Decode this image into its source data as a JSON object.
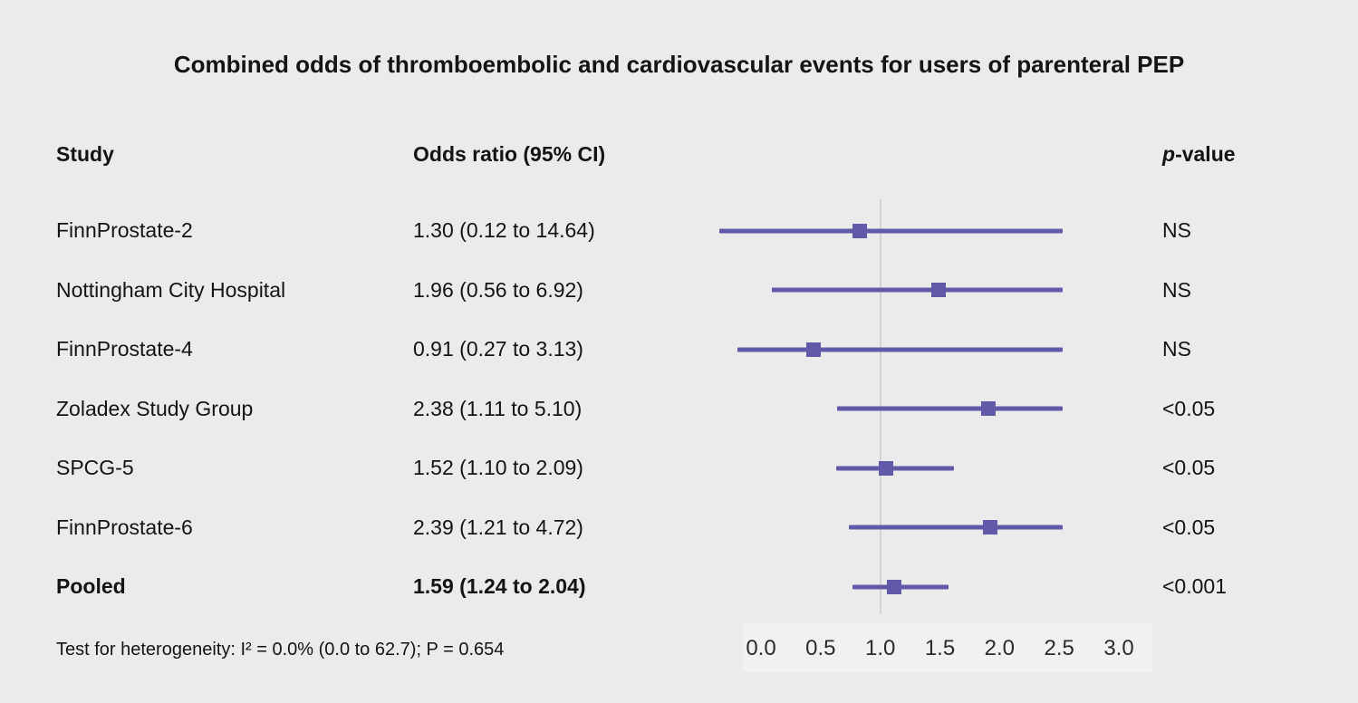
{
  "title": "Combined odds of thromboembolic and cardiovascular events for users of parenteral PEP",
  "columns": {
    "study": "Study",
    "odds_ratio": "Odds ratio (95% CI)",
    "pvalue_italic": "p",
    "pvalue_rest": "-value"
  },
  "footnote": "Test for heterogeneity: I² = 0.0% (0.0 to 62.7); P = 0.654",
  "colors": {
    "background": "#ebebeb",
    "marker": "#615aa8",
    "reference_line": "#d3d2d7",
    "axis_band": "#f2f1f2",
    "text": "#141414"
  },
  "chart_data": {
    "type": "forest",
    "title": "Combined odds of thromboembolic and cardiovascular events for users of parenteral PEP",
    "x_axis": {
      "min": 0.0,
      "max": 3.0,
      "ticks": [
        "0.0",
        "0.5",
        "1.0",
        "1.5",
        "2.0",
        "2.5",
        "3.0"
      ],
      "reference_value": 1.0,
      "clipped_at_max": true
    },
    "rows": [
      {
        "study": "FinnProstate-2",
        "or_text": "1.30 (0.12 to 14.64)",
        "or": 1.3,
        "ci_low": 0.12,
        "ci_high": 14.64,
        "p": "NS",
        "bold": false
      },
      {
        "study": "Nottingham City Hospital",
        "or_text": "1.96 (0.56 to 6.92)",
        "or": 1.96,
        "ci_low": 0.56,
        "ci_high": 6.92,
        "p": "NS",
        "bold": false
      },
      {
        "study": "FinnProstate-4",
        "or_text": "0.91 (0.27 to 3.13)",
        "or": 0.91,
        "ci_low": 0.27,
        "ci_high": 3.13,
        "p": "NS",
        "bold": false
      },
      {
        "study": "Zoladex Study Group",
        "or_text": "2.38 (1.11 to 5.10)",
        "or": 2.38,
        "ci_low": 1.11,
        "ci_high": 5.1,
        "p": "<0.05",
        "bold": false
      },
      {
        "study": "SPCG-5",
        "or_text": "1.52 (1.10 to 2.09)",
        "or": 1.52,
        "ci_low": 1.1,
        "ci_high": 2.09,
        "p": "<0.05",
        "bold": false
      },
      {
        "study": "FinnProstate-6",
        "or_text": "2.39 (1.21 to 4.72)",
        "or": 2.39,
        "ci_low": 1.21,
        "ci_high": 4.72,
        "p": "<0.05",
        "bold": false
      },
      {
        "study": "Pooled",
        "or_text": "1.59 (1.24 to 2.04)",
        "or": 1.59,
        "ci_low": 1.24,
        "ci_high": 2.04,
        "p": "<0.001",
        "bold": true
      }
    ],
    "heterogeneity": "Test for heterogeneity: I² = 0.0% (0.0 to 62.7); P = 0.654"
  }
}
